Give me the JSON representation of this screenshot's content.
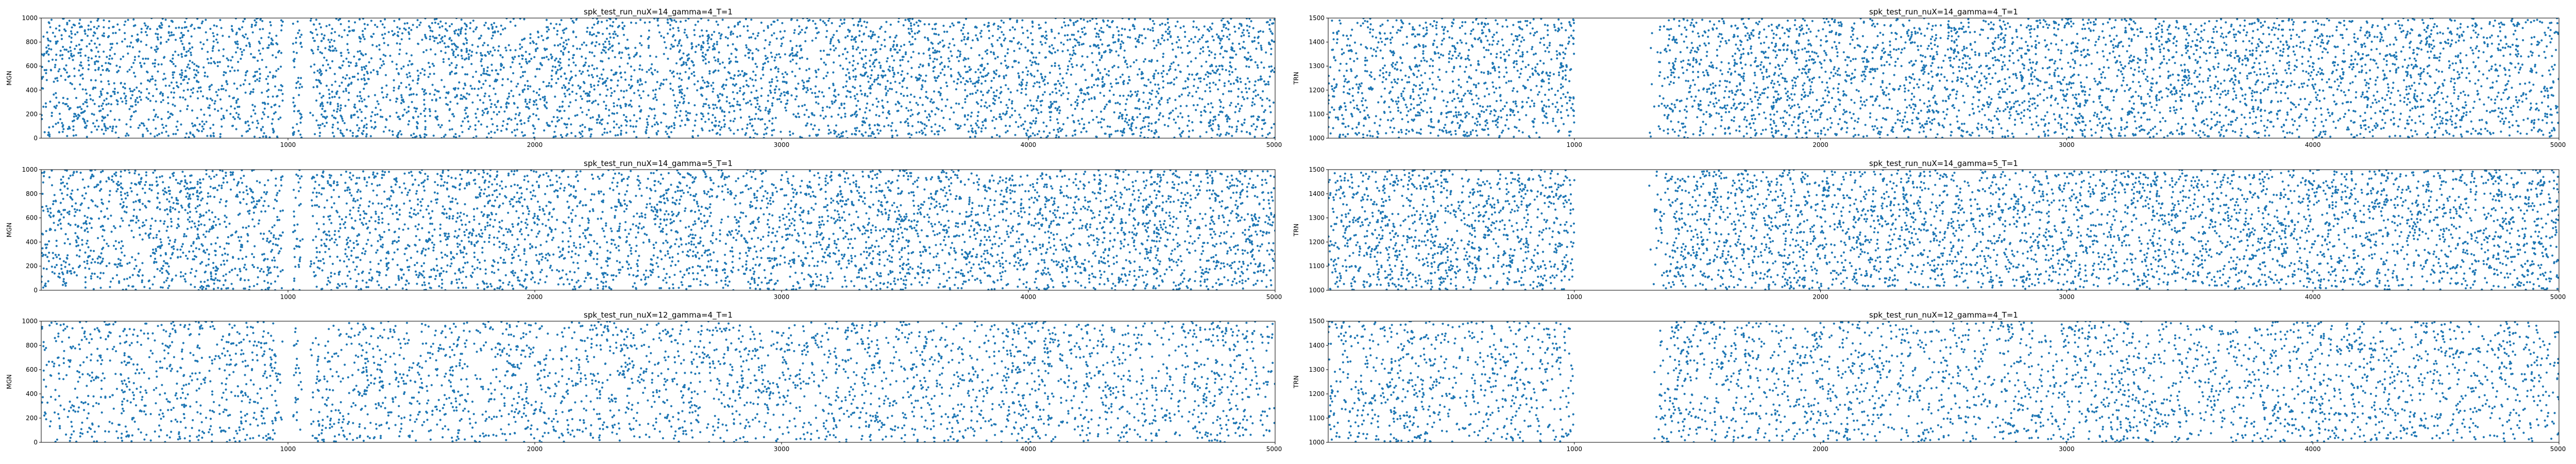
{
  "figure": {
    "rows": 3,
    "cols": 2,
    "marker_color": "#1f77b4"
  },
  "chart_data": [
    {
      "type": "scatter",
      "title": "spk_test_run_nuX=14_gamma=4_T=1",
      "xlabel": "",
      "ylabel": "MGN",
      "xlim": [
        0,
        5000
      ],
      "ylim": [
        0,
        1000
      ],
      "xticks": [
        1000,
        2000,
        3000,
        4000,
        5000
      ],
      "yticks": [
        0,
        200,
        400,
        600,
        800,
        1000
      ],
      "gaps": [
        [
          980,
          1020
        ],
        [
          1060,
          1090
        ]
      ],
      "onset": 0,
      "density": "dense",
      "series": [
        {
          "color": "#1f77b4"
        }
      ]
    },
    {
      "type": "scatter",
      "title": "spk_test_run_nuX=14_gamma=4_T=1",
      "xlabel": "",
      "ylabel": "TRN",
      "xlim": [
        0,
        5000
      ],
      "ylim": [
        1000,
        1500
      ],
      "xticks": [
        1000,
        2000,
        3000,
        4000,
        5000
      ],
      "yticks": [
        1000,
        1100,
        1200,
        1300,
        1400,
        1500
      ],
      "gaps": [
        [
          1000,
          1300
        ]
      ],
      "onset": 1300,
      "density": "dense",
      "series": [
        {
          "color": "#1f77b4"
        }
      ]
    },
    {
      "type": "scatter",
      "title": "spk_test_run_nuX=14_gamma=5_T=1",
      "xlabel": "",
      "ylabel": "MGN",
      "xlim": [
        0,
        5000
      ],
      "ylim": [
        0,
        1000
      ],
      "xticks": [
        1000,
        2000,
        3000,
        4000,
        5000
      ],
      "yticks": [
        0,
        200,
        400,
        600,
        800,
        1000
      ],
      "gaps": [
        [
          980,
          1020
        ],
        [
          1060,
          1090
        ]
      ],
      "onset": 0,
      "density": "dense",
      "series": [
        {
          "color": "#1f77b4"
        }
      ]
    },
    {
      "type": "scatter",
      "title": "spk_test_run_nuX=14_gamma=5_T=1",
      "xlabel": "",
      "ylabel": "TRN",
      "xlim": [
        0,
        5000
      ],
      "ylim": [
        1000,
        1500
      ],
      "xticks": [
        1000,
        2000,
        3000,
        4000,
        5000
      ],
      "yticks": [
        1000,
        1100,
        1200,
        1300,
        1400,
        1500
      ],
      "gaps": [
        [
          1000,
          1300
        ]
      ],
      "onset": 1300,
      "density": "dense",
      "series": [
        {
          "color": "#1f77b4"
        }
      ]
    },
    {
      "type": "scatter",
      "title": "spk_test_run_nuX=12_gamma=4_T=1",
      "xlabel": "",
      "ylabel": "MGN",
      "xlim": [
        0,
        5000
      ],
      "ylim": [
        0,
        1000
      ],
      "xticks": [
        1000,
        2000,
        3000,
        4000,
        5000
      ],
      "yticks": [
        0,
        200,
        400,
        600,
        800,
        1000
      ],
      "gaps": [
        [
          980,
          1020
        ],
        [
          1060,
          1090
        ]
      ],
      "onset": 0,
      "density": "sparser",
      "series": [
        {
          "color": "#1f77b4"
        }
      ]
    },
    {
      "type": "scatter",
      "title": "spk_test_run_nuX=12_gamma=4_T=1",
      "xlabel": "",
      "ylabel": "TRN",
      "xlim": [
        0,
        5000
      ],
      "ylim": [
        1000,
        1500
      ],
      "xticks": [
        1000,
        2000,
        3000,
        4000,
        5000
      ],
      "yticks": [
        1000,
        1100,
        1200,
        1300,
        1400,
        1500
      ],
      "gaps": [
        [
          1000,
          1300
        ]
      ],
      "onset": 1300,
      "density": "sparser",
      "series": [
        {
          "color": "#1f77b4"
        }
      ]
    }
  ]
}
